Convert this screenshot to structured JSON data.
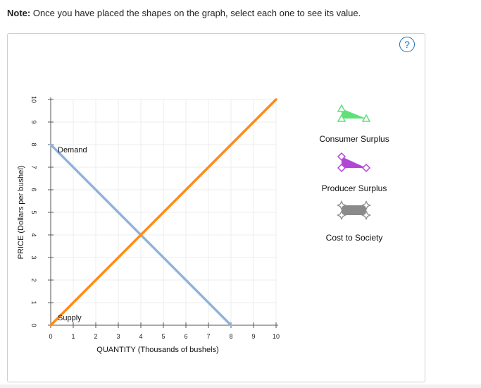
{
  "note": {
    "bold": "Note:",
    "text": " Once you have placed the shapes on the graph, select each one to see its value."
  },
  "help_label": "?",
  "tools": [
    {
      "label": "Consumer Surplus",
      "color": "#5fe07a",
      "marker": "triangle"
    },
    {
      "label": "Producer Surplus",
      "color": "#b246d6",
      "marker": "diamond"
    },
    {
      "label": "Cost to Society",
      "color": "#8a8a8a",
      "marker": "star"
    }
  ],
  "chart_data": {
    "type": "line",
    "xlabel": "QUANTITY (Thousands of bushels)",
    "ylabel": "PRICE (Dollars per bushel)",
    "xlim": [
      0,
      10
    ],
    "ylim": [
      0,
      10
    ],
    "x_ticks": [
      0,
      1,
      2,
      3,
      4,
      5,
      6,
      7,
      8,
      9,
      10
    ],
    "y_ticks": [
      0,
      1,
      2,
      3,
      4,
      5,
      6,
      7,
      8,
      9,
      10
    ],
    "grid": true,
    "series": [
      {
        "name": "Demand",
        "color": "#8fb3dc",
        "points": [
          [
            0,
            8
          ],
          [
            8,
            0
          ]
        ]
      },
      {
        "name": "Supply",
        "color": "#ff8a1a",
        "points": [
          [
            0,
            0
          ],
          [
            10,
            10
          ]
        ]
      }
    ]
  }
}
